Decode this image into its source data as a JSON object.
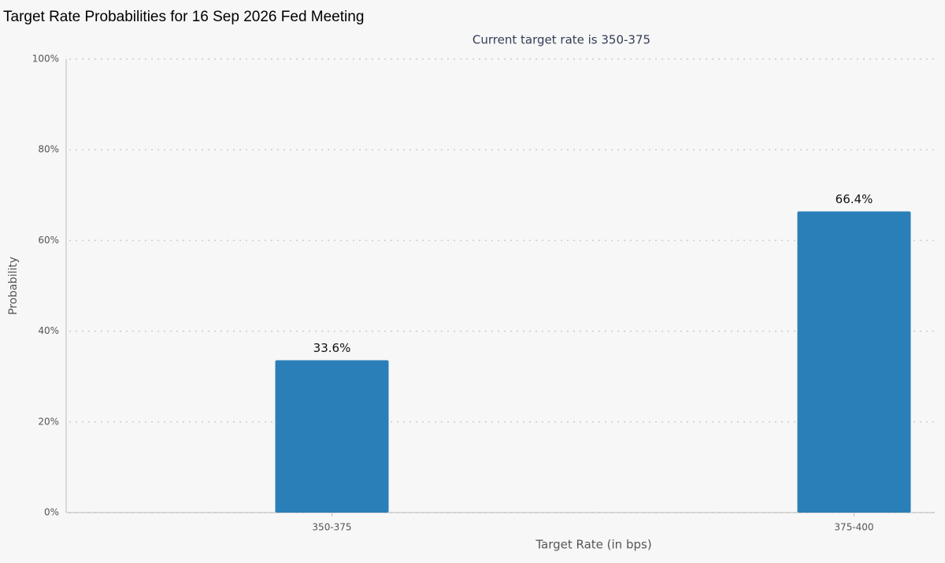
{
  "chart_data": {
    "type": "bar",
    "title": "Target Rate Probabilities for 16 Sep 2026 Fed Meeting",
    "subtitle": "Current target rate is 350-375",
    "x_label": "Target Rate (in bps)",
    "y_label": "Probability",
    "categories": [
      "350-375",
      "375-400"
    ],
    "values": [
      33.6,
      66.4
    ],
    "value_labels": [
      "33.6%",
      "66.4%"
    ],
    "color": "#2a7fb8",
    "ylim": [
      0,
      100
    ],
    "yticks": [
      {
        "value": 0,
        "label": "0%"
      },
      {
        "value": 20,
        "label": "20%"
      },
      {
        "value": 40,
        "label": "40%"
      },
      {
        "value": 60,
        "label": "60%"
      },
      {
        "value": 80,
        "label": "80%"
      },
      {
        "value": 100,
        "label": "100%"
      }
    ],
    "grid": true
  }
}
